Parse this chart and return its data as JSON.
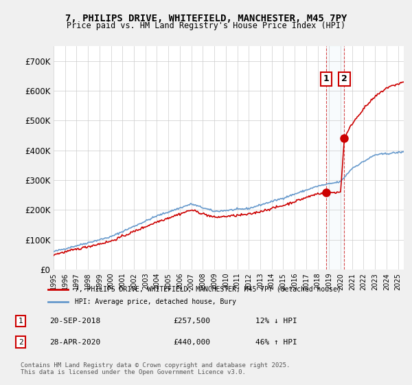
{
  "title": "7, PHILIPS DRIVE, WHITEFIELD, MANCHESTER, M45 7PY",
  "subtitle": "Price paid vs. HM Land Registry's House Price Index (HPI)",
  "legend_line1": "7, PHILIPS DRIVE, WHITEFIELD, MANCHESTER, M45 7PY (detached house)",
  "legend_line2": "HPI: Average price, detached house, Bury",
  "annotation1_label": "1",
  "annotation1_date": "20-SEP-2018",
  "annotation1_price": "£257,500",
  "annotation1_hpi": "12% ↓ HPI",
  "annotation2_label": "2",
  "annotation2_date": "28-APR-2020",
  "annotation2_price": "£440,000",
  "annotation2_hpi": "46% ↑ HPI",
  "footer": "Contains HM Land Registry data © Crown copyright and database right 2025.\nThis data is licensed under the Open Government Licence v3.0.",
  "red_color": "#cc0000",
  "blue_color": "#6699cc",
  "background_color": "#f0f0f0",
  "plot_bg_color": "#ffffff",
  "ylim": [
    0,
    750000
  ],
  "yticks": [
    0,
    100000,
    200000,
    300000,
    400000,
    500000,
    600000,
    700000
  ],
  "ytick_labels": [
    "£0",
    "£100K",
    "£200K",
    "£300K",
    "£400K",
    "£500K",
    "£600K",
    "£700K"
  ],
  "sale1_x": 2018.72,
  "sale1_y": 257500,
  "sale2_x": 2020.32,
  "sale2_y": 440000,
  "xmin": 1995,
  "xmax": 2025.5
}
